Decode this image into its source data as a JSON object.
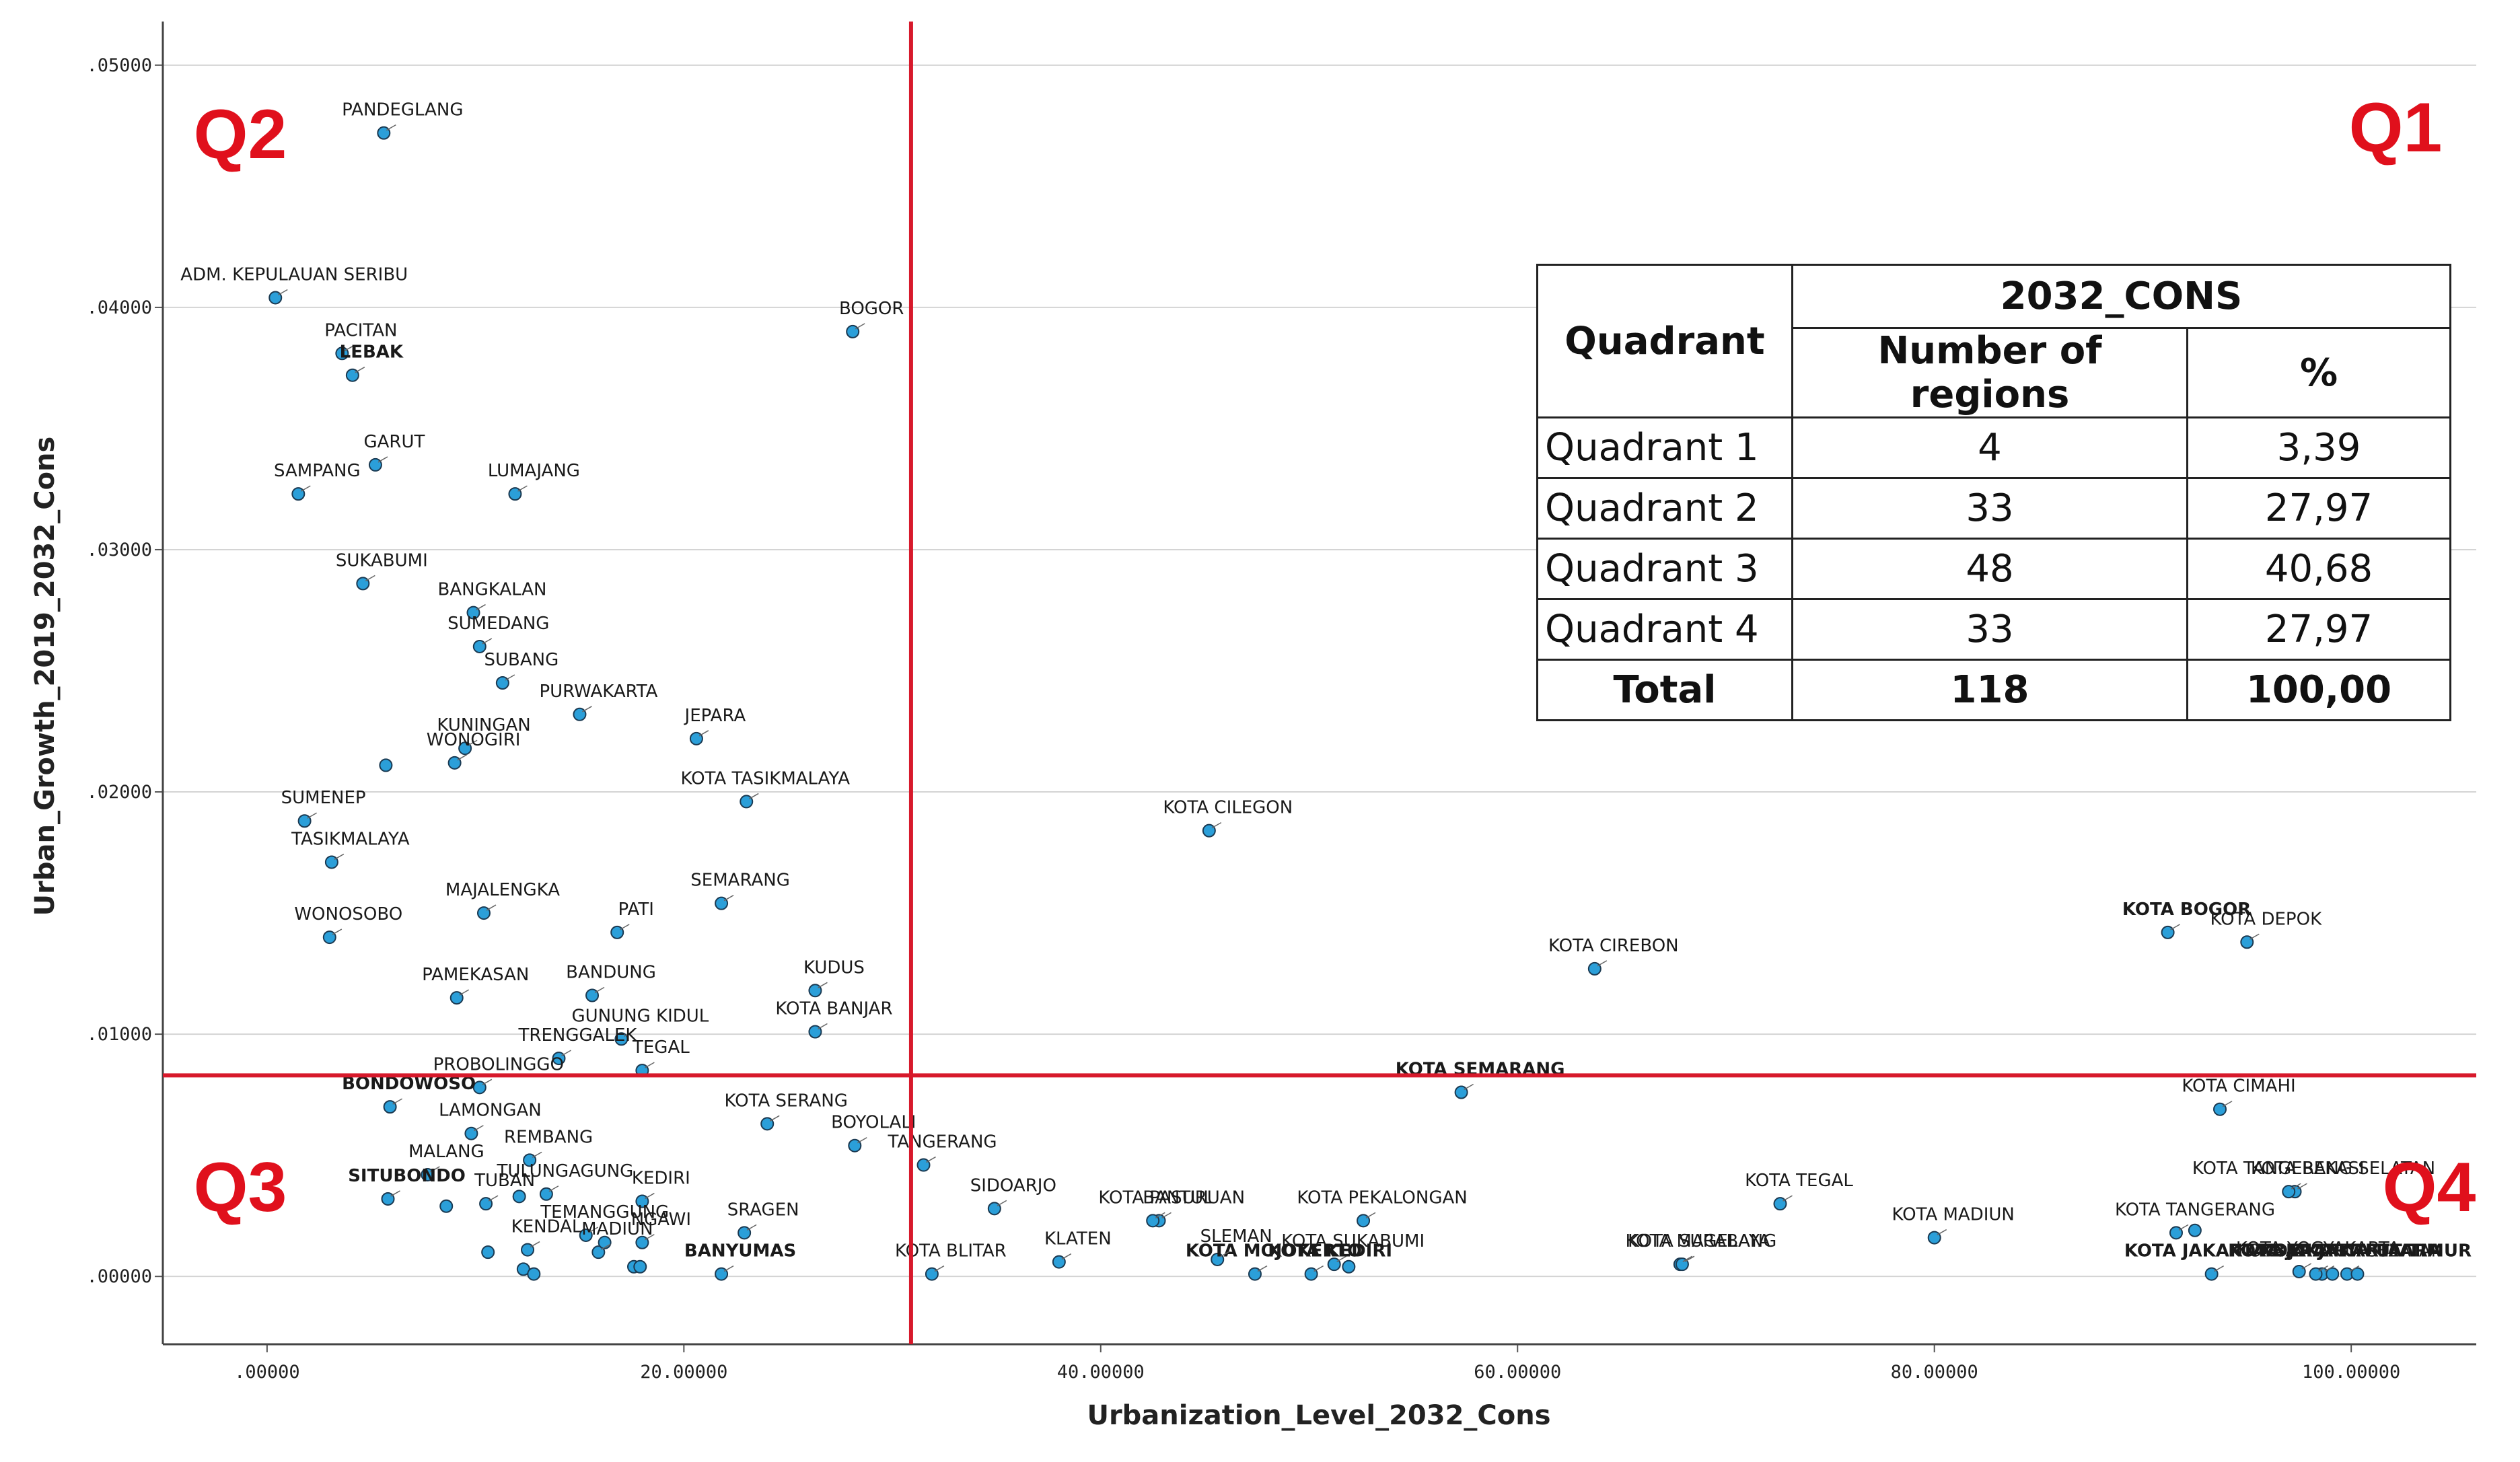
{
  "chart_data": {
    "type": "scatter",
    "xlabel": "Urbanization_Level_2032_Cons",
    "ylabel": "Urban_Growth_2019_2032_Cons",
    "xlim": [
      -5,
      106
    ],
    "ylim": [
      -0.0028,
      0.0518
    ],
    "x_ticks": [
      0,
      20,
      40,
      60,
      80,
      100
    ],
    "x_tick_labels": [
      ".00000",
      "20.00000",
      "40.00000",
      "60.00000",
      "80.00000",
      "100.00000"
    ],
    "y_ticks": [
      0,
      0.01,
      0.02,
      0.03,
      0.04,
      0.05
    ],
    "y_tick_labels": [
      ".00000",
      ".01000",
      ".02000",
      ".03000",
      ".04000",
      ".05000"
    ],
    "grid": "horizontal",
    "point_color": "#2b9fd9",
    "reference_line_color": "#d7192b",
    "reference_lines": {
      "x": 30.9,
      "y": 0.0083
    },
    "quadrant_labels": [
      "Q1",
      "Q2",
      "Q3",
      "Q4"
    ],
    "points": [
      {
        "label": "PANDEGLANG",
        "x": 5.6,
        "y": 0.0472
      },
      {
        "label": "ADM. KEPULAUAN SERIBU",
        "x": 0.4,
        "y": 0.0404
      },
      {
        "label": "PACITAN",
        "x": 3.6,
        "y": 0.0381
      },
      {
        "label": "LEBAK",
        "x": 4.1,
        "y": 0.0372,
        "bold": true
      },
      {
        "label": "BOGOR",
        "x": 28.1,
        "y": 0.039
      },
      {
        "label": "GARUT",
        "x": 5.2,
        "y": 0.0335
      },
      {
        "label": "SAMPANG",
        "x": 1.5,
        "y": 0.0323
      },
      {
        "label": "LUMAJANG",
        "x": 11.9,
        "y": 0.0323
      },
      {
        "label": "SUKABUMI",
        "x": 4.6,
        "y": 0.0286
      },
      {
        "label": "BANGKALAN",
        "x": 9.9,
        "y": 0.0274
      },
      {
        "label": "SUMEDANG",
        "x": 10.2,
        "y": 0.026
      },
      {
        "label": "SUBANG",
        "x": 11.3,
        "y": 0.0245
      },
      {
        "label": "PURWAKARTA",
        "x": 15.0,
        "y": 0.0232
      },
      {
        "label": "KUNINGAN",
        "x": 9.5,
        "y": 0.0218
      },
      {
        "label": "JEPARA",
        "x": 20.6,
        "y": 0.0222
      },
      {
        "label": "WONOGIRI",
        "x": 9.0,
        "y": 0.0212
      },
      {
        "label": "",
        "x": 5.7,
        "y": 0.0211
      },
      {
        "label": "KOTA TASIKMALAYA",
        "x": 23.0,
        "y": 0.0196
      },
      {
        "label": "SUMENEP",
        "x": 1.8,
        "y": 0.0188
      },
      {
        "label": "TASIKMALAYA",
        "x": 3.1,
        "y": 0.0171
      },
      {
        "label": "MAJALENGKA",
        "x": 10.4,
        "y": 0.015
      },
      {
        "label": "SEMARANG",
        "x": 21.8,
        "y": 0.0154
      },
      {
        "label": "WONOSOBO",
        "x": 3.0,
        "y": 0.014
      },
      {
        "label": "PATI",
        "x": 16.8,
        "y": 0.0142
      },
      {
        "label": "PAMEKASAN",
        "x": 9.1,
        "y": 0.0115
      },
      {
        "label": "BANDUNG",
        "x": 15.6,
        "y": 0.0116
      },
      {
        "label": "KUDUS",
        "x": 26.3,
        "y": 0.0118
      },
      {
        "label": "KOTA BANJAR",
        "x": 26.3,
        "y": 0.0101
      },
      {
        "label": "GUNUNG KIDUL",
        "x": 17.0,
        "y": 0.0098
      },
      {
        "label": "TRENGGALEK",
        "x": 14.0,
        "y": 0.009
      },
      {
        "label": "TEGAL",
        "x": 18.0,
        "y": 0.0085
      },
      {
        "label": "PROBOLINGGO",
        "x": 10.2,
        "y": 0.0078
      },
      {
        "label": "BONDOWOSO",
        "x": 5.9,
        "y": 0.007,
        "bold": true
      },
      {
        "label": "LAMONGAN",
        "x": 9.8,
        "y": 0.0059
      },
      {
        "label": "KOTA SERANG",
        "x": 24.0,
        "y": 0.0063
      },
      {
        "label": "BOYOLALI",
        "x": 28.2,
        "y": 0.0054
      },
      {
        "label": "TANGERANG",
        "x": 31.5,
        "y": 0.0046
      },
      {
        "label": "REMBANG",
        "x": 12.6,
        "y": 0.0048
      },
      {
        "label": "MALANG",
        "x": 7.7,
        "y": 0.0042
      },
      {
        "label": "TULUNGAGUNG",
        "x": 13.4,
        "y": 0.0034
      },
      {
        "label": "KEDIRI",
        "x": 18.0,
        "y": 0.0031
      },
      {
        "label": "TUBAN",
        "x": 10.5,
        "y": 0.003
      },
      {
        "label": "SITUBONDO",
        "x": 5.8,
        "y": 0.0032,
        "bold": true
      },
      {
        "label": "",
        "x": 8.6,
        "y": 0.0029
      },
      {
        "label": "",
        "x": 12.1,
        "y": 0.0033
      },
      {
        "label": "TEMANGGUNG",
        "x": 15.3,
        "y": 0.0017
      },
      {
        "label": "NGAWI",
        "x": 18.0,
        "y": 0.0014
      },
      {
        "label": "SRAGEN",
        "x": 22.9,
        "y": 0.0018
      },
      {
        "label": "KENDAL",
        "x": 12.5,
        "y": 0.0011
      },
      {
        "label": "MADIUN",
        "x": 15.9,
        "y": 0.001
      },
      {
        "label": "",
        "x": 10.6,
        "y": 0.001
      },
      {
        "label": "",
        "x": 16.2,
        "y": 0.0014
      },
      {
        "label": "",
        "x": 12.3,
        "y": 0.0003
      },
      {
        "label": "",
        "x": 12.8,
        "y": 0.0001
      },
      {
        "label": "",
        "x": 17.6,
        "y": 0.0004
      },
      {
        "label": "",
        "x": 17.9,
        "y": 0.0004
      },
      {
        "label": "BANYUMAS",
        "x": 21.8,
        "y": 0.0001,
        "bold": true
      },
      {
        "label": "SIDOARJO",
        "x": 34.9,
        "y": 0.0028
      },
      {
        "label": "KOTA BLITAR",
        "x": 31.9,
        "y": 0.0001
      },
      {
        "label": "BANTUL",
        "x": 42.8,
        "y": 0.0023
      },
      {
        "label": "KOTA PASURUAN",
        "x": 42.5,
        "y": 0.0023
      },
      {
        "label": "KLATEN",
        "x": 38.0,
        "y": 0.0006
      },
      {
        "label": "KOTA MOJOKERTO",
        "x": 47.4,
        "y": 0.0001,
        "bold": true
      },
      {
        "label": "SLEMAN",
        "x": 45.6,
        "y": 0.0007
      },
      {
        "label": "KOTA PEKALONGAN",
        "x": 52.6,
        "y": 0.0023
      },
      {
        "label": "KOTA SUKABUMI",
        "x": 51.2,
        "y": 0.0005
      },
      {
        "label": "",
        "x": 51.9,
        "y": 0.0004
      },
      {
        "label": "KOTA KEDIRI",
        "x": 50.1,
        "y": 0.0001,
        "bold": true
      },
      {
        "label": "KOTA SEMARANG",
        "x": 57.3,
        "y": 0.0076,
        "bold": true
      },
      {
        "label": "KOTA CILEGON",
        "x": 45.2,
        "y": 0.0184
      },
      {
        "label": "KOTA CIREBON",
        "x": 63.7,
        "y": 0.0127
      },
      {
        "label": "KOTA SURABAYA",
        "x": 67.8,
        "y": 0.0005
      },
      {
        "label": "KOTA MAGELANG",
        "x": 67.9,
        "y": 0.0005
      },
      {
        "label": "KOTA TEGAL",
        "x": 72.6,
        "y": 0.003
      },
      {
        "label": "KOTA MADIUN",
        "x": 80.0,
        "y": 0.0016
      },
      {
        "label": "KOTA BOGOR",
        "x": 91.2,
        "y": 0.0142,
        "bold": true
      },
      {
        "label": "KOTA DEPOK",
        "x": 95.0,
        "y": 0.0138
      },
      {
        "label": "KOTA CIMAHI",
        "x": 93.7,
        "y": 0.0069
      },
      {
        "label": "KOTA TANGERANG SELATAN",
        "x": 97.3,
        "y": 0.0035
      },
      {
        "label": "KOTA BEKASI",
        "x": 97.0,
        "y": 0.0035
      },
      {
        "label": "KOTA TANGERANG",
        "x": 91.6,
        "y": 0.0018
      },
      {
        "label": "",
        "x": 92.5,
        "y": 0.0019
      },
      {
        "label": "KOTA JAKARTA SELATAN",
        "x": 98.6,
        "y": 0.0001
      },
      {
        "label": "KOTA YOGYAKARTA",
        "x": 97.5,
        "y": 0.0002
      },
      {
        "label": "KOTA JAKARTA BARAT",
        "x": 93.3,
        "y": 0.0001,
        "bold": true
      },
      {
        "label": "KOTA JAKARTA UTARA",
        "x": 98.3,
        "y": 0.0001,
        "bold": true
      },
      {
        "label": "KOTA JAKARTA TIMUR",
        "x": 99.8,
        "y": 0.0001,
        "bold": true
      },
      {
        "label": "",
        "x": 99.1,
        "y": 0.0001
      },
      {
        "label": "",
        "x": 100.3,
        "y": 0.0001
      }
    ]
  },
  "table": {
    "header_quadrant": "Quadrant",
    "header_group": "2032_CONS",
    "header_count": "Number of regions",
    "header_pct": "%",
    "rows": [
      {
        "label": "Quadrant 1",
        "count": "4",
        "pct": "3,39"
      },
      {
        "label": "Quadrant 2",
        "count": "33",
        "pct": "27,97"
      },
      {
        "label": "Quadrant 3",
        "count": "48",
        "pct": "40,68"
      },
      {
        "label": "Quadrant 4",
        "count": "33",
        "pct": "27,97"
      }
    ],
    "total": {
      "label": "Total",
      "count": "118",
      "pct": "100,00"
    }
  }
}
